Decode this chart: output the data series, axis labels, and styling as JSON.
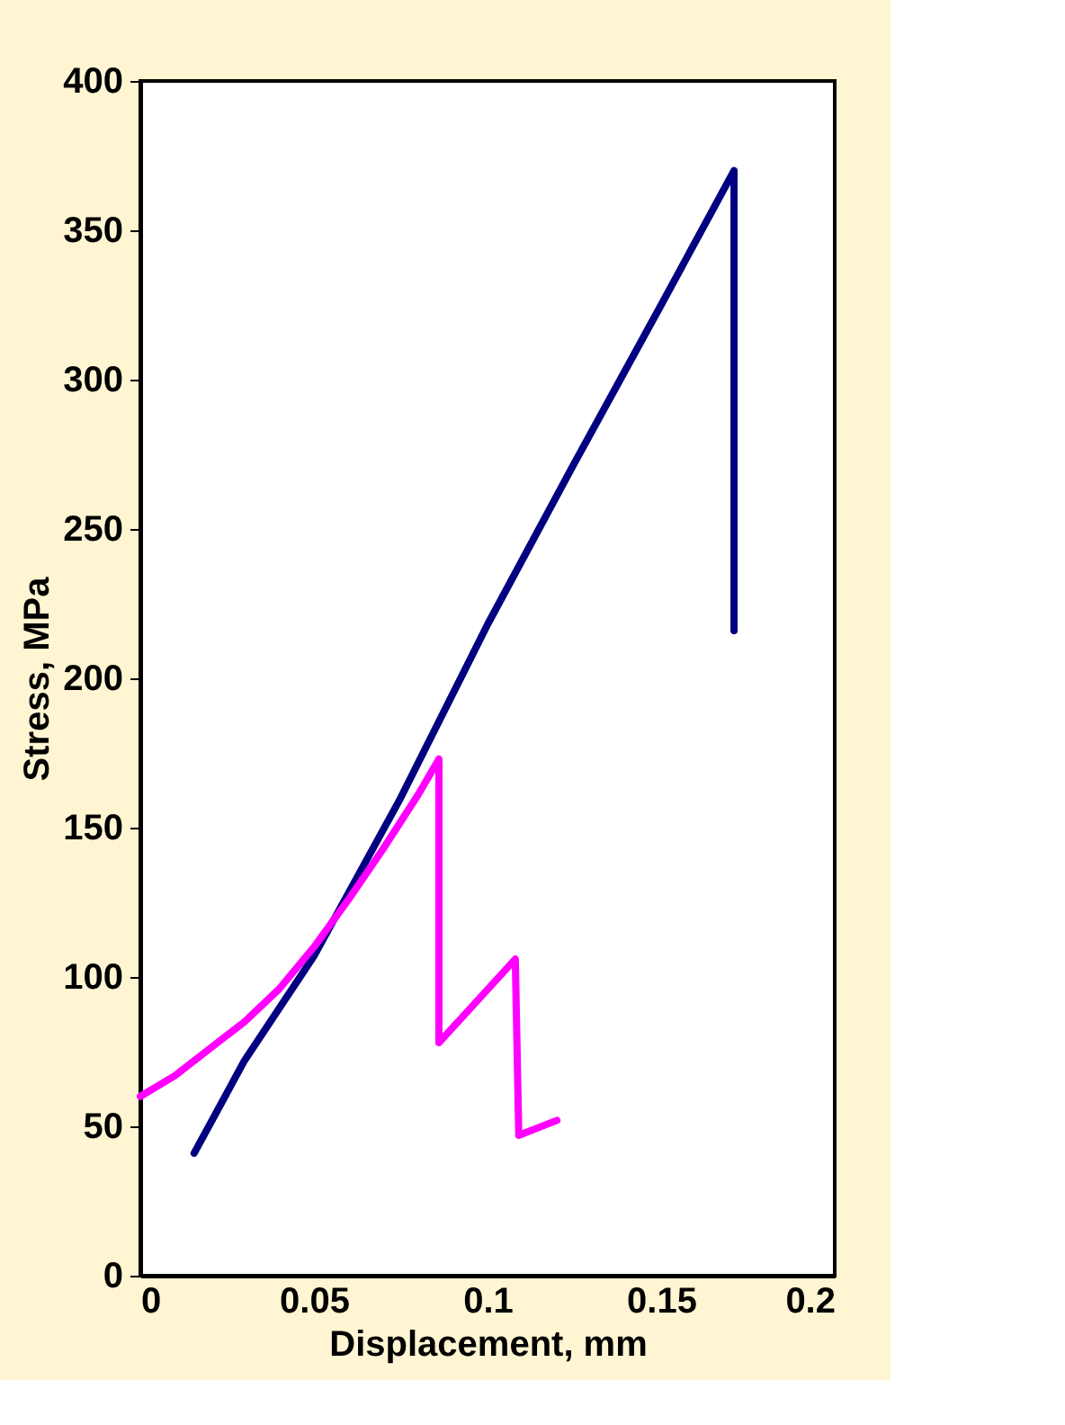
{
  "chart_data": {
    "type": "line",
    "xlabel": "Displacement, mm",
    "ylabel": "Stress, MPa",
    "xlim": [
      0,
      0.2
    ],
    "xticks": [
      0,
      0.05,
      0.1,
      0.15,
      0.2
    ],
    "ylim": [
      0,
      400
    ],
    "yticks": [
      0,
      50,
      100,
      150,
      200,
      250,
      300,
      350,
      400
    ],
    "grid": false,
    "legend": false,
    "marker": "none",
    "line_style": "solid",
    "series": [
      {
        "color": "#000080",
        "x": [
          0.0155,
          0.03,
          0.05,
          0.075,
          0.1,
          0.125,
          0.15,
          0.171,
          0.171
        ],
        "values": [
          41,
          72,
          107,
          160,
          218,
          272,
          325,
          370,
          216
        ]
      },
      {
        "color": "#ff00ff",
        "x": [
          0,
          0.01,
          0.02,
          0.03,
          0.04,
          0.05,
          0.06,
          0.07,
          0.08,
          0.086,
          0.086,
          0.108,
          0.109,
          0.12
        ],
        "values": [
          60,
          67,
          76,
          85,
          96,
          110,
          126,
          143,
          161,
          173,
          78,
          106,
          47,
          52
        ]
      }
    ]
  }
}
